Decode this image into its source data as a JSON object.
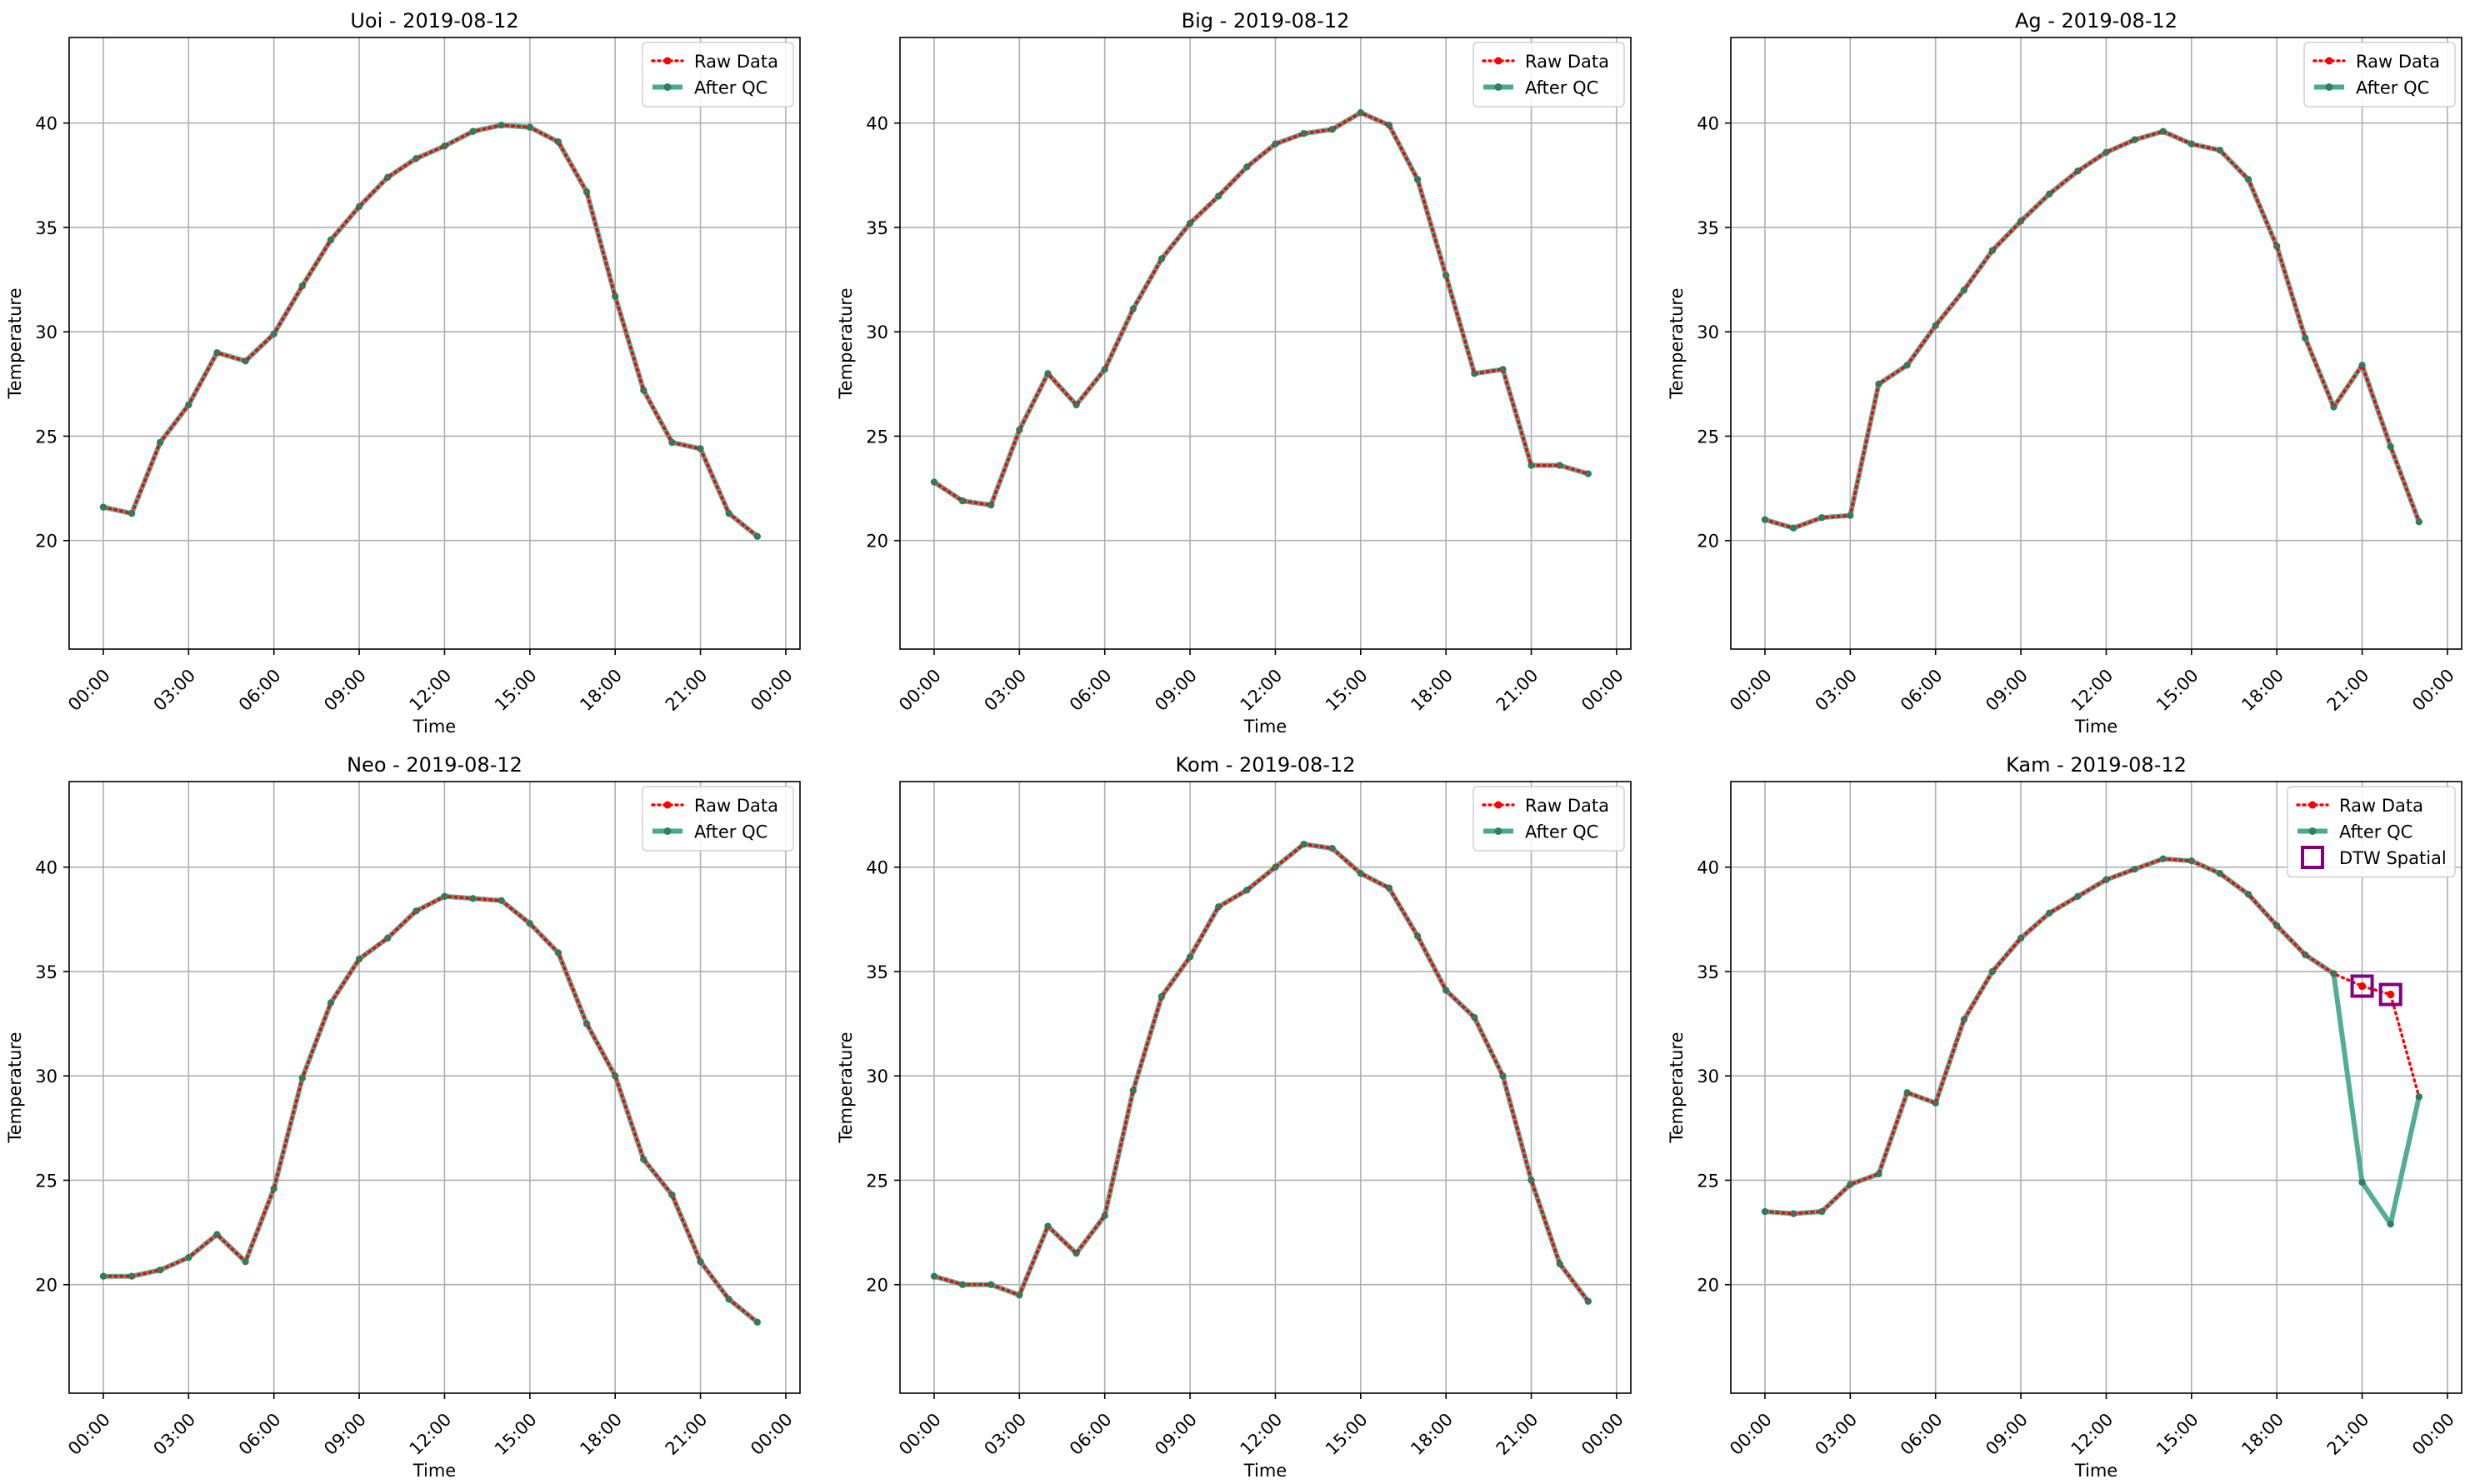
{
  "chart_data": [
    {
      "type": "line",
      "title": "Uoi - 2019-08-12",
      "xlabel": "Time",
      "ylabel": "Temperature",
      "ylim": [
        14.8,
        44.1
      ],
      "yticks": [
        20,
        25,
        30,
        35,
        40
      ],
      "xticks": [
        "00:00",
        "03:00",
        "06:00",
        "09:00",
        "12:00",
        "15:00",
        "18:00",
        "21:00",
        "00:00"
      ],
      "grid": true,
      "legend_position": "upper right",
      "x": [
        0,
        1,
        2,
        3,
        4,
        5,
        6,
        7,
        8,
        9,
        10,
        11,
        12,
        13,
        14,
        15,
        16,
        17,
        18,
        19,
        20,
        21,
        22,
        23
      ],
      "series": [
        {
          "name": "Raw Data",
          "color": "#ff0000",
          "style": "dotted",
          "marker": "dot",
          "values": [
            21.6,
            21.3,
            24.7,
            26.5,
            29.0,
            28.6,
            29.9,
            32.2,
            34.4,
            36.0,
            37.4,
            38.3,
            38.9,
            39.6,
            39.9,
            39.8,
            39.1,
            36.7,
            31.7,
            27.2,
            24.7,
            24.4,
            21.3,
            20.2
          ]
        },
        {
          "name": "After QC",
          "color": "#2ca02c",
          "style": "solid",
          "marker": "dot",
          "values": [
            21.6,
            21.3,
            24.7,
            26.5,
            29.0,
            28.6,
            29.9,
            32.2,
            34.4,
            36.0,
            37.4,
            38.3,
            38.9,
            39.6,
            39.9,
            39.8,
            39.1,
            36.7,
            31.7,
            27.2,
            24.7,
            24.4,
            21.3,
            20.2
          ]
        }
      ]
    },
    {
      "type": "line",
      "title": "Big - 2019-08-12",
      "xlabel": "Time",
      "ylabel": "Temperature",
      "ylim": [
        14.8,
        44.1
      ],
      "yticks": [
        20,
        25,
        30,
        35,
        40
      ],
      "xticks": [
        "00:00",
        "03:00",
        "06:00",
        "09:00",
        "12:00",
        "15:00",
        "18:00",
        "21:00",
        "00:00"
      ],
      "grid": true,
      "legend_position": "upper right",
      "x": [
        0,
        1,
        2,
        3,
        4,
        5,
        6,
        7,
        8,
        9,
        10,
        11,
        12,
        13,
        14,
        15,
        16,
        17,
        18,
        19,
        20,
        21,
        22,
        23
      ],
      "series": [
        {
          "name": "Raw Data",
          "color": "#ff0000",
          "style": "dotted",
          "marker": "dot",
          "values": [
            22.8,
            21.9,
            21.7,
            25.3,
            28.0,
            26.5,
            28.2,
            31.1,
            33.5,
            35.2,
            36.5,
            37.9,
            39.0,
            39.5,
            39.7,
            40.5,
            39.9,
            37.3,
            32.7,
            28.0,
            28.2,
            23.6,
            23.6,
            23.2
          ]
        },
        {
          "name": "After QC",
          "color": "#2ca02c",
          "style": "solid",
          "marker": "dot",
          "values": [
            22.8,
            21.9,
            21.7,
            25.3,
            28.0,
            26.5,
            28.2,
            31.1,
            33.5,
            35.2,
            36.5,
            37.9,
            39.0,
            39.5,
            39.7,
            40.5,
            39.9,
            37.3,
            32.7,
            28.0,
            28.2,
            23.6,
            23.6,
            23.2
          ]
        }
      ]
    },
    {
      "type": "line",
      "title": "Ag - 2019-08-12",
      "xlabel": "Time",
      "ylabel": "Temperature",
      "ylim": [
        14.8,
        44.1
      ],
      "yticks": [
        20,
        25,
        30,
        35,
        40
      ],
      "xticks": [
        "00:00",
        "03:00",
        "06:00",
        "09:00",
        "12:00",
        "15:00",
        "18:00",
        "21:00",
        "00:00"
      ],
      "grid": true,
      "legend_position": "upper right",
      "x": [
        0,
        1,
        2,
        3,
        4,
        5,
        6,
        7,
        8,
        9,
        10,
        11,
        12,
        13,
        14,
        15,
        16,
        17,
        18,
        19,
        20,
        21,
        22,
        23
      ],
      "series": [
        {
          "name": "Raw Data",
          "color": "#ff0000",
          "style": "dotted",
          "marker": "dot",
          "values": [
            21.0,
            20.6,
            21.1,
            21.2,
            27.5,
            28.4,
            30.3,
            32.0,
            33.9,
            35.3,
            36.6,
            37.7,
            38.6,
            39.2,
            39.6,
            39.0,
            38.7,
            37.3,
            34.1,
            29.7,
            26.4,
            28.4,
            24.5,
            20.9
          ]
        },
        {
          "name": "After QC",
          "color": "#2ca02c",
          "style": "solid",
          "marker": "dot",
          "values": [
            21.0,
            20.6,
            21.1,
            21.2,
            27.5,
            28.4,
            30.3,
            32.0,
            33.9,
            35.3,
            36.6,
            37.7,
            38.6,
            39.2,
            39.6,
            39.0,
            38.7,
            37.3,
            34.1,
            29.7,
            26.4,
            28.4,
            24.5,
            20.9
          ]
        }
      ]
    },
    {
      "type": "line",
      "title": "Neo - 2019-08-12",
      "xlabel": "Time",
      "ylabel": "Temperature",
      "ylim": [
        14.8,
        44.1
      ],
      "yticks": [
        20,
        25,
        30,
        35,
        40
      ],
      "xticks": [
        "00:00",
        "03:00",
        "06:00",
        "09:00",
        "12:00",
        "15:00",
        "18:00",
        "21:00",
        "00:00"
      ],
      "grid": true,
      "legend_position": "upper right",
      "x": [
        0,
        1,
        2,
        3,
        4,
        5,
        6,
        7,
        8,
        9,
        10,
        11,
        12,
        13,
        14,
        15,
        16,
        17,
        18,
        19,
        20,
        21,
        22,
        23
      ],
      "series": [
        {
          "name": "Raw Data",
          "color": "#ff0000",
          "style": "dotted",
          "marker": "dot",
          "values": [
            20.4,
            20.4,
            20.7,
            21.3,
            22.4,
            21.1,
            24.6,
            29.9,
            33.5,
            35.6,
            36.6,
            37.9,
            38.6,
            38.5,
            38.4,
            37.3,
            35.9,
            32.5,
            30.0,
            26.0,
            24.3,
            21.1,
            19.3,
            18.2
          ]
        },
        {
          "name": "After QC",
          "color": "#2ca02c",
          "style": "solid",
          "marker": "dot",
          "values": [
            20.4,
            20.4,
            20.7,
            21.3,
            22.4,
            21.1,
            24.6,
            29.9,
            33.5,
            35.6,
            36.6,
            37.9,
            38.6,
            38.5,
            38.4,
            37.3,
            35.9,
            32.5,
            30.0,
            26.0,
            24.3,
            21.1,
            19.3,
            18.2
          ]
        }
      ]
    },
    {
      "type": "line",
      "title": "Kom - 2019-08-12",
      "xlabel": "Time",
      "ylabel": "Temperature",
      "ylim": [
        14.8,
        44.1
      ],
      "yticks": [
        20,
        25,
        30,
        35,
        40
      ],
      "xticks": [
        "00:00",
        "03:00",
        "06:00",
        "09:00",
        "12:00",
        "15:00",
        "18:00",
        "21:00",
        "00:00"
      ],
      "grid": true,
      "legend_position": "upper right",
      "x": [
        0,
        1,
        2,
        3,
        4,
        5,
        6,
        7,
        8,
        9,
        10,
        11,
        12,
        13,
        14,
        15,
        16,
        17,
        18,
        19,
        20,
        21,
        22,
        23
      ],
      "series": [
        {
          "name": "Raw Data",
          "color": "#ff0000",
          "style": "dotted",
          "marker": "dot",
          "values": [
            20.4,
            20.0,
            20.0,
            19.5,
            22.8,
            21.5,
            23.3,
            29.3,
            33.8,
            35.7,
            38.1,
            38.9,
            40.0,
            41.1,
            40.9,
            39.7,
            39.0,
            36.7,
            34.1,
            32.8,
            30.0,
            25.0,
            21.0,
            19.2
          ]
        },
        {
          "name": "After QC",
          "color": "#2ca02c",
          "style": "solid",
          "marker": "dot",
          "values": [
            20.4,
            20.0,
            20.0,
            19.5,
            22.8,
            21.5,
            23.3,
            29.3,
            33.8,
            35.7,
            38.1,
            38.9,
            40.0,
            41.1,
            40.9,
            39.7,
            39.0,
            36.7,
            34.1,
            32.8,
            30.0,
            25.0,
            21.0,
            19.2
          ]
        }
      ]
    },
    {
      "type": "line",
      "title": "Kam - 2019-08-12",
      "xlabel": "Time",
      "ylabel": "Temperature",
      "ylim": [
        14.8,
        44.1
      ],
      "yticks": [
        20,
        25,
        30,
        35,
        40
      ],
      "xticks": [
        "00:00",
        "03:00",
        "06:00",
        "09:00",
        "12:00",
        "15:00",
        "18:00",
        "21:00",
        "00:00"
      ],
      "grid": true,
      "legend_position": "upper right",
      "x": [
        0,
        1,
        2,
        3,
        4,
        5,
        6,
        7,
        8,
        9,
        10,
        11,
        12,
        13,
        14,
        15,
        16,
        17,
        18,
        19,
        20,
        21,
        22,
        23
      ],
      "series": [
        {
          "name": "Raw Data",
          "color": "#ff0000",
          "style": "dotted",
          "marker": "dot",
          "values": [
            23.5,
            23.4,
            23.5,
            24.8,
            25.3,
            29.2,
            28.7,
            32.7,
            35.0,
            36.6,
            37.8,
            38.6,
            39.4,
            39.9,
            40.4,
            40.3,
            39.7,
            38.7,
            37.2,
            35.8,
            34.9,
            34.3,
            33.9,
            29.0
          ]
        },
        {
          "name": "After QC",
          "color": "#2ca02c",
          "style": "solid",
          "marker": "dot",
          "values": [
            23.5,
            23.4,
            23.5,
            24.8,
            25.3,
            29.2,
            28.7,
            32.7,
            35.0,
            36.6,
            37.8,
            38.6,
            39.4,
            39.9,
            40.4,
            40.3,
            39.7,
            38.7,
            37.2,
            35.8,
            34.9,
            24.9,
            22.9,
            29.0
          ]
        },
        {
          "name": "DTW Spatial",
          "color": "#800080",
          "style": "none",
          "marker": "square",
          "points": [
            [
              21,
              34.3
            ],
            [
              22,
              33.9
            ]
          ]
        }
      ]
    }
  ]
}
